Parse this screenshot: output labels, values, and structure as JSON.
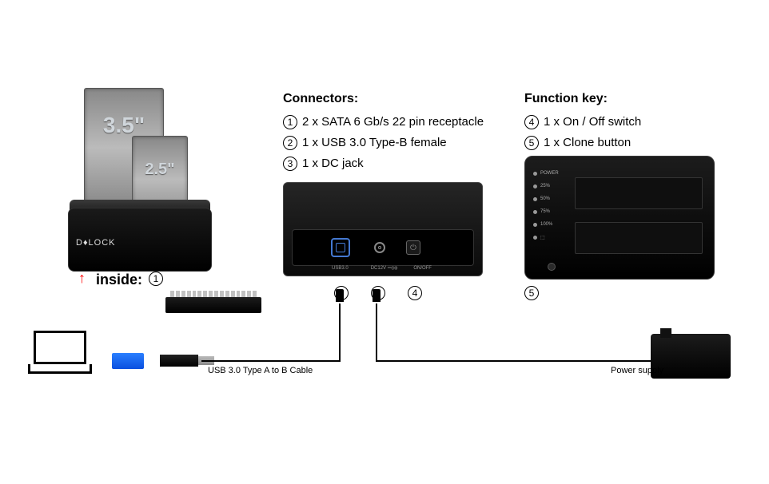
{
  "drive35_label": "3.5\"",
  "drive25_label": "2.5\"",
  "brand": "D♦LOCK",
  "inside_label": "inside:",
  "connectors": {
    "heading": "Connectors:",
    "items": [
      {
        "num": "1",
        "text": "2 x SATA 6 Gb/s 22 pin receptacle"
      },
      {
        "num": "2",
        "text": "1 x USB 3.0 Type-B female"
      },
      {
        "num": "3",
        "text": "1 x DC jack"
      }
    ]
  },
  "function_key": {
    "heading": "Function key:",
    "items": [
      {
        "num": "4",
        "text": "1 x On / Off switch"
      },
      {
        "num": "5",
        "text": "1 x Clone button"
      }
    ]
  },
  "port_labels": {
    "usb": "USB3.0",
    "dc": "DC12V ⎓⊖⊕",
    "onoff": "ON/OFF"
  },
  "leds": [
    "POWER",
    "25%",
    "50%",
    "75%",
    "100%",
    "⬚"
  ],
  "callouts": {
    "c1": "1",
    "c2": "2",
    "c3": "3",
    "c4": "4",
    "c5": "5"
  },
  "cable_label": "USB 3.0 Type A to B Cable",
  "psu_label": "Power supply",
  "colors": {
    "usb_blue": "#2a7fff",
    "black": "#000000",
    "grey_metal": "#a8a8a8",
    "red": "#ff0000"
  }
}
